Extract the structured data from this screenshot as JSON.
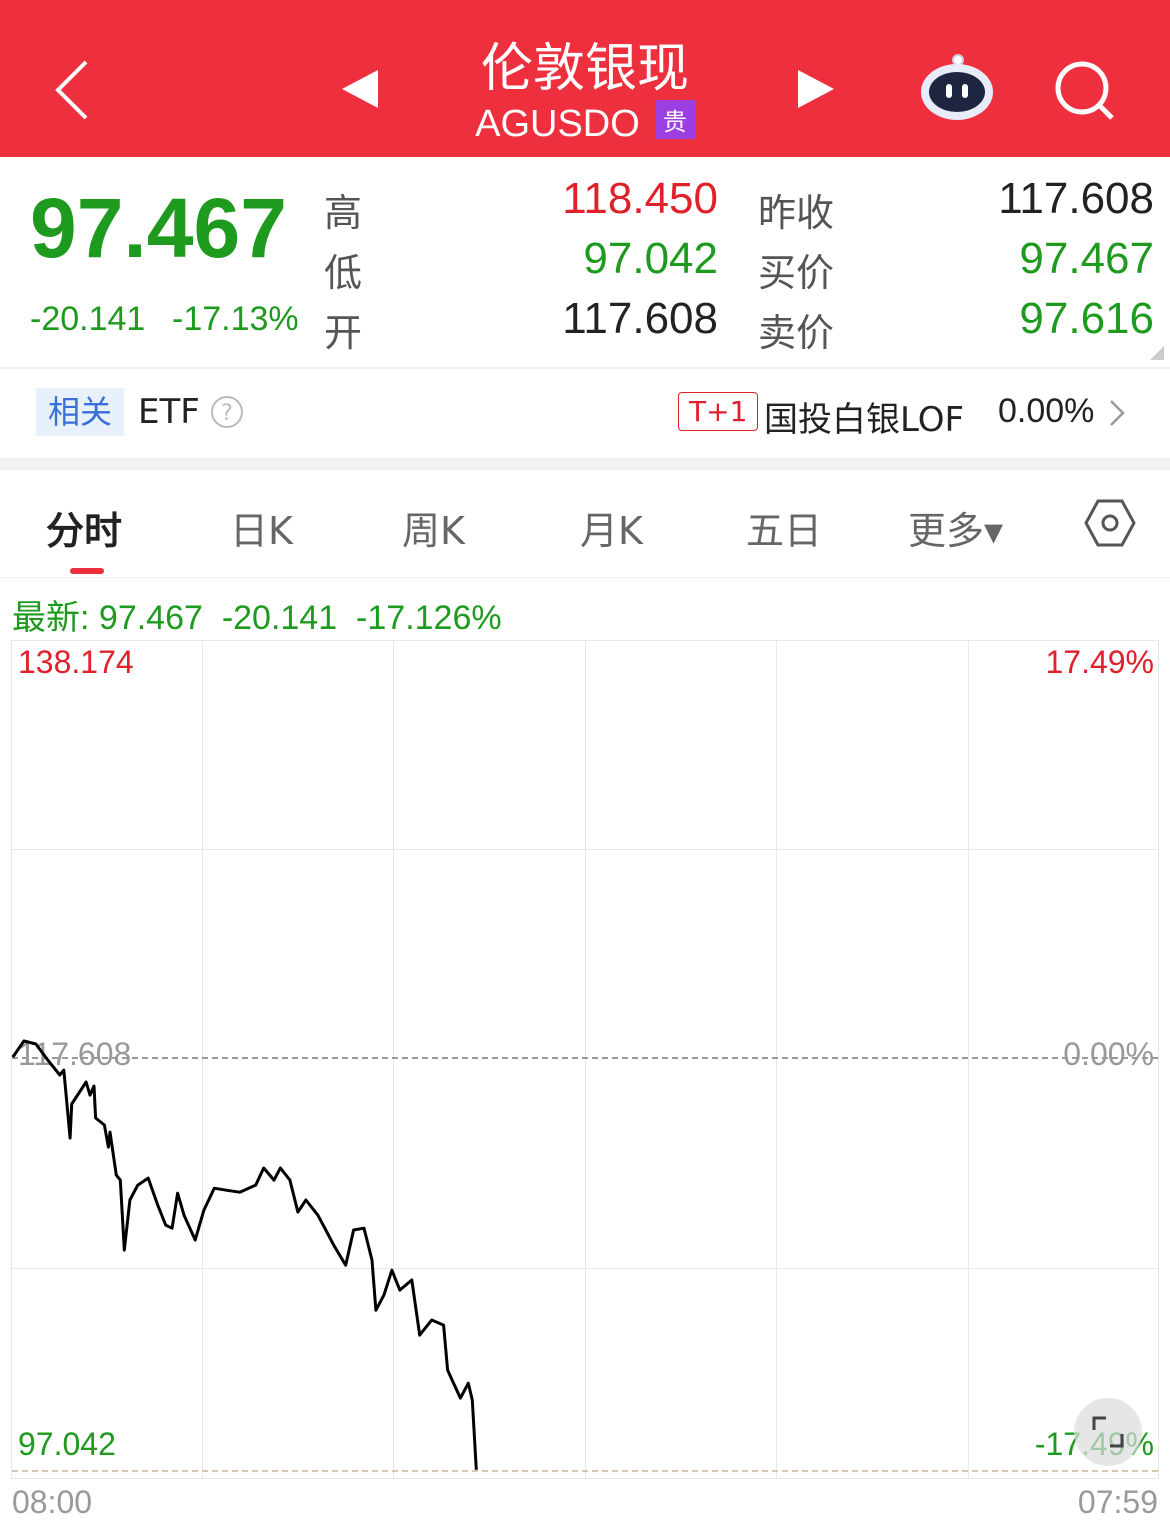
{
  "header": {
    "title": "伦敦银现",
    "code": "AGUSDO",
    "badge": "贵",
    "badge_color": "#9b3fe0",
    "bg_color": "#ee2f3d",
    "icons": [
      "back-chevron-icon",
      "prev-triangle-icon",
      "next-triangle-icon",
      "robot-assistant-icon",
      "search-icon"
    ]
  },
  "quote": {
    "price": "97.467",
    "change": "-20.141",
    "change_pct": "-17.13%",
    "high_label": "高",
    "high": "118.450",
    "low_label": "低",
    "low": "97.042",
    "open_label": "开",
    "open": "117.608",
    "prev_close_label": "昨收",
    "prev_close": "117.608",
    "bid_label": "买价",
    "bid": "97.467",
    "ask_label": "卖价",
    "ask": "97.616"
  },
  "etf": {
    "tag": "相关",
    "label": "ETF",
    "help_icon": "question-circle-icon",
    "t_badge": "T+1",
    "fund_name": "国投白银LOF",
    "fund_change": "0.00%"
  },
  "tabs": [
    {
      "label": "分时",
      "active": true
    },
    {
      "label": "日K"
    },
    {
      "label": "周K"
    },
    {
      "label": "月K"
    },
    {
      "label": "五日"
    },
    {
      "label": "更多▾"
    }
  ],
  "latest": {
    "label": "最新:",
    "price": "97.467",
    "change": "-20.141",
    "pct": "-17.126%"
  },
  "chart_data": {
    "type": "line",
    "y_max_label": "138.174",
    "y_mid_label": "117.608",
    "y_min_label": "97.042",
    "pct_max_label": "17.49%",
    "pct_mid_label": "0.00%",
    "pct_min_label": "-17.49%",
    "x_start_label": "08:00",
    "x_end_label": "07:59",
    "ylim": [
      97.042,
      138.174
    ],
    "reference": 117.608,
    "grid": true,
    "line_color": "#000000",
    "x": [
      "08:01",
      "08:15",
      "08:30",
      "08:45",
      "09:00",
      "09:05",
      "09:13",
      "09:15",
      "09:33",
      "09:38",
      "09:43",
      "09:45",
      "09:56",
      "10:01",
      "10:03",
      "10:11",
      "10:16",
      "10:21",
      "10:28",
      "10:38",
      "10:51",
      "11:03",
      "11:13",
      "11:21",
      "11:28",
      "11:36",
      "11:50",
      "12:01",
      "12:14",
      "12:29",
      "12:46",
      "13:06",
      "13:16",
      "13:29",
      "13:37",
      "13:49",
      "13:59",
      "14:09",
      "14:24",
      "14:34",
      "14:44",
      "14:59",
      "15:09",
      "15:22",
      "15:32",
      "15:37",
      "15:47",
      "15:57",
      "16:07",
      "16:22",
      "16:32",
      "16:47",
      "17:02",
      "17:07",
      "17:23",
      "17:33",
      "17:38",
      "17:43"
    ],
    "values": [
      117.58,
      118.38,
      118.23,
      117.43,
      116.69,
      116.93,
      113.55,
      115.24,
      116.34,
      115.69,
      116.14,
      114.55,
      114.2,
      113.1,
      113.85,
      111.71,
      111.46,
      107.98,
      110.47,
      111.21,
      111.56,
      110.22,
      109.22,
      109.07,
      110.81,
      109.72,
      108.48,
      109.97,
      111.06,
      110.96,
      110.86,
      111.21,
      112.06,
      111.46,
      112.06,
      111.46,
      109.87,
      110.47,
      109.72,
      108.98,
      108.23,
      107.23,
      108.98,
      109.07,
      107.48,
      104.99,
      105.74,
      106.98,
      105.99,
      106.49,
      103.75,
      104.5,
      104.25,
      102.01,
      100.62,
      101.36,
      100.52,
      97.05
    ]
  }
}
